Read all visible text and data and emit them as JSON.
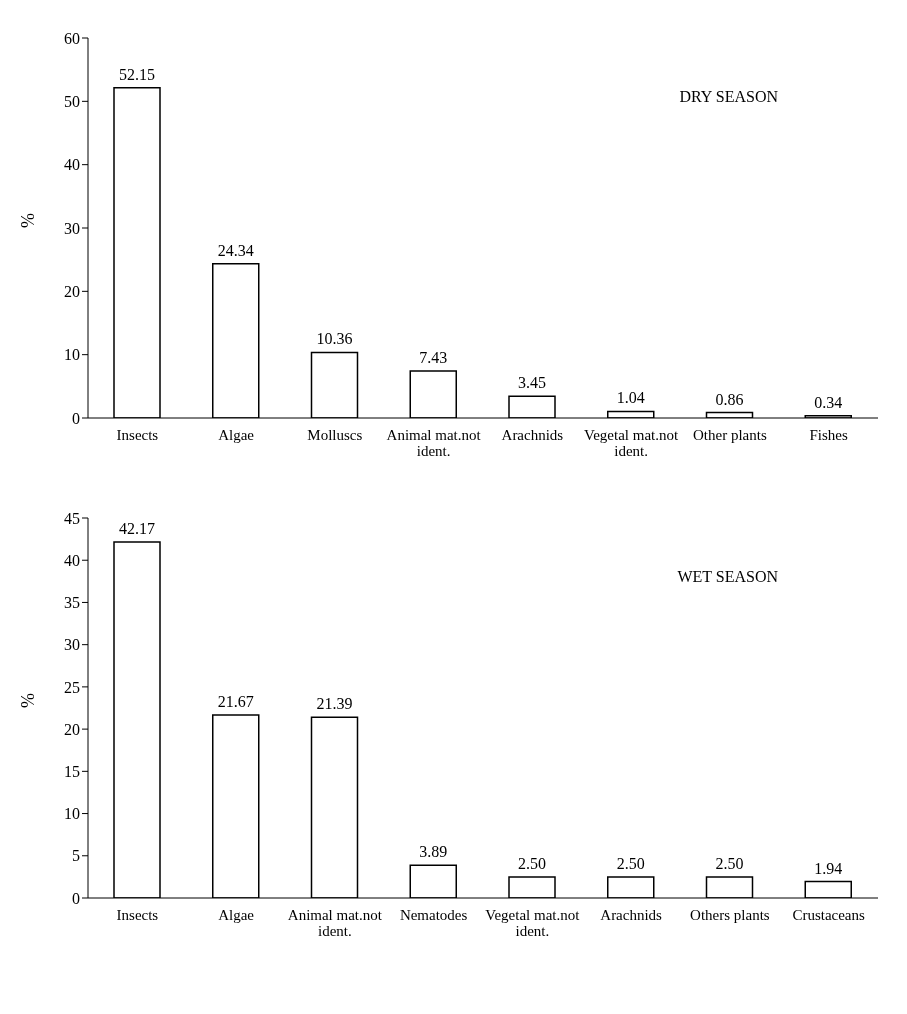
{
  "chart_data": [
    {
      "type": "bar",
      "ylabel": "%",
      "categories": [
        "Insects",
        "Algae",
        "Molluscs",
        "Animal mat.not ident.",
        "Arachnids",
        "Vegetal mat.not ident.",
        "Other plants",
        "Fishes"
      ],
      "values": [
        52.15,
        24.34,
        10.36,
        7.43,
        3.45,
        1.04,
        0.86,
        0.34
      ],
      "value_labels": [
        "52.15",
        "24.34",
        "10.36",
        "7.43",
        "3.45",
        "1.04",
        "0.86",
        "0.34"
      ],
      "color": "#ffffff",
      "ylim": [
        0,
        60
      ],
      "yticks": [
        0,
        10,
        20,
        30,
        40,
        50,
        60
      ],
      "grid": false,
      "annotations": [
        "DRY SEASON"
      ]
    },
    {
      "type": "bar",
      "ylabel": "%",
      "categories": [
        "Insects",
        "Algae",
        "Animal mat.not ident.",
        "Nematodes",
        "Vegetal mat.not ident.",
        "Arachnids",
        "Others plants",
        "Crustaceans"
      ],
      "values": [
        42.17,
        21.67,
        21.39,
        3.89,
        2.5,
        2.5,
        2.5,
        1.94
      ],
      "value_labels": [
        "42.17",
        "21.67",
        "21.39",
        "3.89",
        "2.50",
        "2.50",
        "2.50",
        "1.94"
      ],
      "color": "#ffffff",
      "ylim": [
        0,
        45
      ],
      "yticks": [
        0,
        5,
        10,
        15,
        20,
        25,
        30,
        35,
        40,
        45
      ],
      "grid": false,
      "annotations": [
        "WET SEASON"
      ]
    }
  ]
}
